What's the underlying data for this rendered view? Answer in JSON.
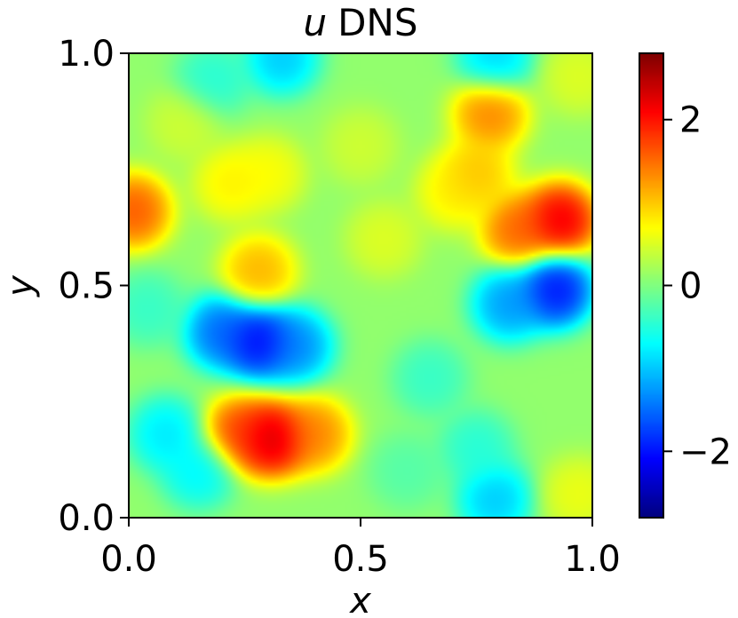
{
  "chart_data": {
    "type": "heatmap",
    "title_var": "u",
    "title_rest": "DNS",
    "xlabel": "x",
    "ylabel": "y",
    "xlim": [
      0.0,
      1.0
    ],
    "ylim": [
      0.0,
      1.0
    ],
    "x_ticks": [
      0.0,
      0.5,
      1.0
    ],
    "x_tick_labels": [
      "0.0",
      "0.5",
      "1.0"
    ],
    "y_ticks": [
      0.0,
      0.5,
      1.0
    ],
    "y_tick_labels": [
      "0.0",
      "0.5",
      "1.0"
    ],
    "colormap": "jet",
    "colorbar": {
      "range": [
        -2.8,
        2.8
      ],
      "ticks": [
        -2,
        0,
        2
      ],
      "tick_labels": [
        "−2",
        "0",
        "2"
      ]
    },
    "background_value": 0.1,
    "features": [
      {
        "x": 0.31,
        "y": 0.17,
        "value": 2.8
      },
      {
        "x": 0.24,
        "y": 0.18,
        "value": 2.0
      },
      {
        "x": 0.4,
        "y": 0.18,
        "value": 1.6
      },
      {
        "x": 0.28,
        "y": 0.38,
        "value": -2.5
      },
      {
        "x": 0.2,
        "y": 0.4,
        "value": -1.8
      },
      {
        "x": 0.36,
        "y": 0.37,
        "value": -1.6
      },
      {
        "x": 0.93,
        "y": 0.64,
        "value": 2.6
      },
      {
        "x": 0.84,
        "y": 0.62,
        "value": 1.8
      },
      {
        "x": 0.92,
        "y": 0.49,
        "value": -2.4
      },
      {
        "x": 0.82,
        "y": 0.46,
        "value": -1.5
      },
      {
        "x": 0.01,
        "y": 0.66,
        "value": 1.9
      },
      {
        "x": 0.78,
        "y": 0.87,
        "value": 1.6
      },
      {
        "x": 0.75,
        "y": 0.74,
        "value": 1.2
      },
      {
        "x": 0.7,
        "y": 0.7,
        "value": 0.9
      },
      {
        "x": 0.28,
        "y": 0.53,
        "value": 1.3
      },
      {
        "x": 0.22,
        "y": 0.72,
        "value": 0.9
      },
      {
        "x": 0.3,
        "y": 0.74,
        "value": 0.8
      },
      {
        "x": 0.33,
        "y": 0.99,
        "value": -1.2
      },
      {
        "x": 0.79,
        "y": 0.99,
        "value": -1.1
      },
      {
        "x": 0.18,
        "y": 0.94,
        "value": -0.6
      },
      {
        "x": 0.79,
        "y": 0.04,
        "value": -1.2
      },
      {
        "x": 0.08,
        "y": 0.18,
        "value": -1.0
      },
      {
        "x": 0.15,
        "y": 0.1,
        "value": -0.9
      },
      {
        "x": 0.04,
        "y": 0.45,
        "value": -0.5
      },
      {
        "x": 0.65,
        "y": 0.3,
        "value": -0.5
      },
      {
        "x": 0.75,
        "y": 0.15,
        "value": -0.6
      },
      {
        "x": 0.55,
        "y": 0.6,
        "value": 0.6
      },
      {
        "x": 0.5,
        "y": 0.8,
        "value": 0.5
      },
      {
        "x": 0.12,
        "y": 0.85,
        "value": 0.5
      },
      {
        "x": 0.97,
        "y": 0.95,
        "value": 0.6
      },
      {
        "x": 0.97,
        "y": 0.05,
        "value": 0.7
      },
      {
        "x": 0.6,
        "y": 0.1,
        "value": -0.3
      }
    ]
  }
}
